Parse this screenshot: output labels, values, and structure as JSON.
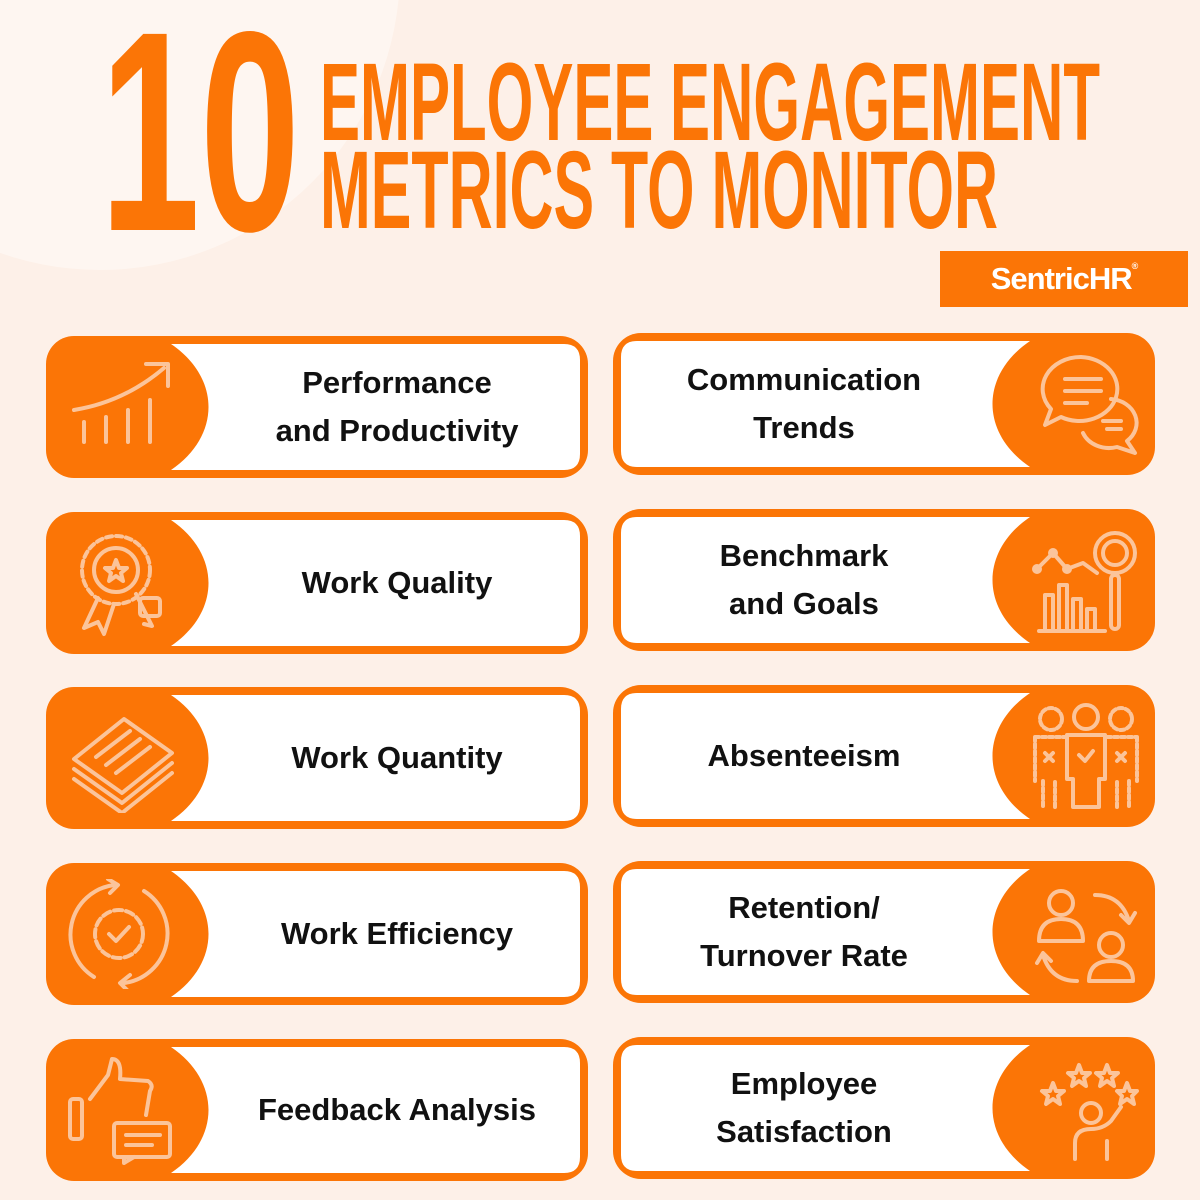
{
  "title": {
    "number": "10",
    "line1": "EMPLOYEE ENGAGEMENT",
    "line2": "METRICS TO MONITOR"
  },
  "brand": {
    "name": "SentricHR",
    "registered": "®"
  },
  "colors": {
    "accent": "#fb7506",
    "background": "#fdf0e8",
    "icon": "#fbc49a"
  },
  "metrics_left": [
    {
      "label": "Performance\nand Productivity",
      "icon": "growth-chart-icon"
    },
    {
      "label": "Work Quality",
      "icon": "award-badge-icon"
    },
    {
      "label": "Work Quantity",
      "icon": "document-stack-icon"
    },
    {
      "label": "Work Efficiency",
      "icon": "gear-cycle-icon"
    },
    {
      "label": "Feedback Analysis",
      "icon": "thumbs-up-feedback-icon"
    }
  ],
  "metrics_right": [
    {
      "label": "Communication\nTrends",
      "icon": "chat-bubbles-icon"
    },
    {
      "label": "Benchmark\nand Goals",
      "icon": "analytics-magnifier-icon"
    },
    {
      "label": "Absenteeism",
      "icon": "absent-people-icon"
    },
    {
      "label": "Retention/\nTurnover Rate",
      "icon": "employee-swap-icon"
    },
    {
      "label": "Employee\nSatisfaction",
      "icon": "satisfaction-stars-icon"
    }
  ]
}
